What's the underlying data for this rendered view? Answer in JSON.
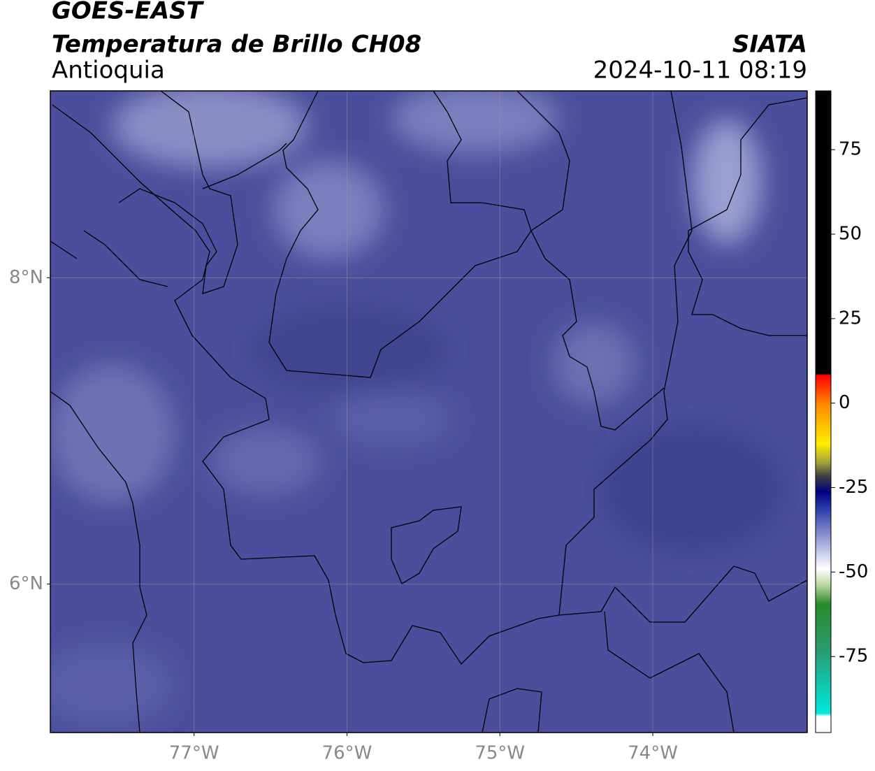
{
  "header": {
    "title": "GOES-EAST",
    "subtitle": "Temperatura de Brillo CH08",
    "region": "Antioquia",
    "source": "SIATA",
    "datetime": "2024-10-11 08:19"
  },
  "map": {
    "type": "map",
    "xlim": [
      -77.94,
      -72.99
    ],
    "ylim": [
      5.03,
      9.22
    ],
    "xticks": [
      {
        "value": -77,
        "label": "77°W"
      },
      {
        "value": -76,
        "label": "76°W"
      },
      {
        "value": -75,
        "label": "75°W"
      },
      {
        "value": -74,
        "label": "74°W"
      }
    ],
    "yticks": [
      {
        "value": 6,
        "label": "6°N"
      },
      {
        "value": 8,
        "label": "8°N"
      }
    ],
    "grid": true
  },
  "colorbar": {
    "lim": [
      -97.5,
      92.4
    ],
    "ticks": [
      75,
      50,
      25,
      0,
      -25,
      -50,
      -75
    ]
  }
}
